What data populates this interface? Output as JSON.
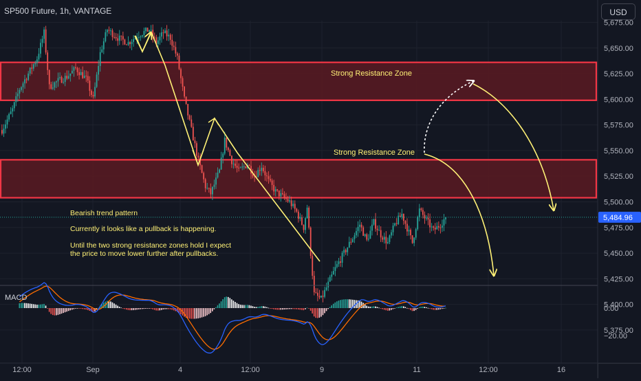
{
  "header": {
    "symbol_title": "SP500 Future, 1h, VANTAGE",
    "currency_button": "USD"
  },
  "macd_label": "MACD",
  "colors": {
    "background": "#131722",
    "up_candle": "#26a69a",
    "down_candle": "#ef5350",
    "zone_fill": "#5a1a22",
    "zone_border": "#f23645",
    "annotation": "#fff176",
    "macd_line": "#2962ff",
    "signal_line": "#ff6d00",
    "price_tag": "#2962ff"
  },
  "annotations": {
    "zone_upper_label": "Strong Resistance Zone",
    "zone_lower_label": "Strong Resistance Zone",
    "note_line1": "Bearish trend pattern",
    "note_line2": "Currently it looks like a pullback is happening.",
    "note_line3": "Until the two strong resistance zones hold I expect",
    "note_line4": "the price to move lower further after pullbacks."
  },
  "chart_data": {
    "type": "candlestick",
    "title": "SP500 Future, 1h, VANTAGE",
    "price_axis": {
      "range": [
        5362,
        5685
      ],
      "ticks": [
        5675,
        5650,
        5625,
        5600,
        5575,
        5550,
        5525,
        5500,
        5475,
        5450,
        5425,
        5400,
        5375
      ],
      "tick_labels": [
        "5,675.00",
        "5,650.00",
        "5,625.00",
        "5,600.00",
        "5,575.00",
        "5,550.00",
        "5,525.00",
        "5,500.00",
        "5,475.00",
        "5,450.00",
        "5,425.00",
        "5,400.00",
        "5,375.00"
      ],
      "last_price": 5484.96,
      "last_price_label": "5,484.96"
    },
    "time_axis": {
      "labels": [
        "12:00",
        "Sep",
        "4",
        "12:00",
        "9",
        "11",
        "12:00",
        "16"
      ]
    },
    "resistance_zones": [
      {
        "label": "Strong Resistance Zone",
        "low": 5599,
        "high": 5636
      },
      {
        "label": "Strong Resistance Zone",
        "low": 5504,
        "high": 5541
      }
    ],
    "price_path": [
      [
        0,
        5570
      ],
      [
        6,
        5590
      ],
      [
        10,
        5610
      ],
      [
        15,
        5625
      ],
      [
        20,
        5640
      ],
      [
        24,
        5665
      ],
      [
        27,
        5612
      ],
      [
        32,
        5618
      ],
      [
        37,
        5622
      ],
      [
        42,
        5630
      ],
      [
        48,
        5620
      ],
      [
        52,
        5600
      ],
      [
        56,
        5645
      ],
      [
        60,
        5668
      ],
      [
        66,
        5660
      ],
      [
        72,
        5655
      ],
      [
        78,
        5663
      ],
      [
        84,
        5668
      ],
      [
        88,
        5655
      ],
      [
        92,
        5665
      ],
      [
        96,
        5660
      ],
      [
        100,
        5640
      ],
      [
        104,
        5600
      ],
      [
        108,
        5570
      ],
      [
        112,
        5540
      ],
      [
        116,
        5515
      ],
      [
        119,
        5508
      ],
      [
        124,
        5530
      ],
      [
        127,
        5560
      ],
      [
        131,
        5540
      ],
      [
        135,
        5530
      ],
      [
        140,
        5537
      ],
      [
        144,
        5525
      ],
      [
        148,
        5535
      ],
      [
        152,
        5520
      ],
      [
        156,
        5510
      ],
      [
        160,
        5505
      ],
      [
        164,
        5500
      ],
      [
        168,
        5490
      ],
      [
        172,
        5475
      ],
      [
        174,
        5495
      ],
      [
        176,
        5450
      ],
      [
        178,
        5410
      ],
      [
        182,
        5405
      ],
      [
        186,
        5420
      ],
      [
        190,
        5435
      ],
      [
        195,
        5450
      ],
      [
        200,
        5465
      ],
      [
        204,
        5478
      ],
      [
        208,
        5462
      ],
      [
        212,
        5480
      ],
      [
        216,
        5468
      ],
      [
        220,
        5460
      ],
      [
        224,
        5478
      ],
      [
        228,
        5488
      ],
      [
        232,
        5470
      ],
      [
        234,
        5460
      ],
      [
        238,
        5492
      ],
      [
        242,
        5482
      ],
      [
        246,
        5472
      ],
      [
        250,
        5478
      ],
      [
        253,
        5484.96
      ]
    ],
    "macd": {
      "axis_ticks": [
        0.0,
        -20.0
      ],
      "axis_tick_labels": [
        "0.00",
        "−20.00"
      ],
      "range": [
        -32,
        11
      ],
      "macd_line_value": 1.2,
      "signal_line_value": 2.6
    }
  }
}
